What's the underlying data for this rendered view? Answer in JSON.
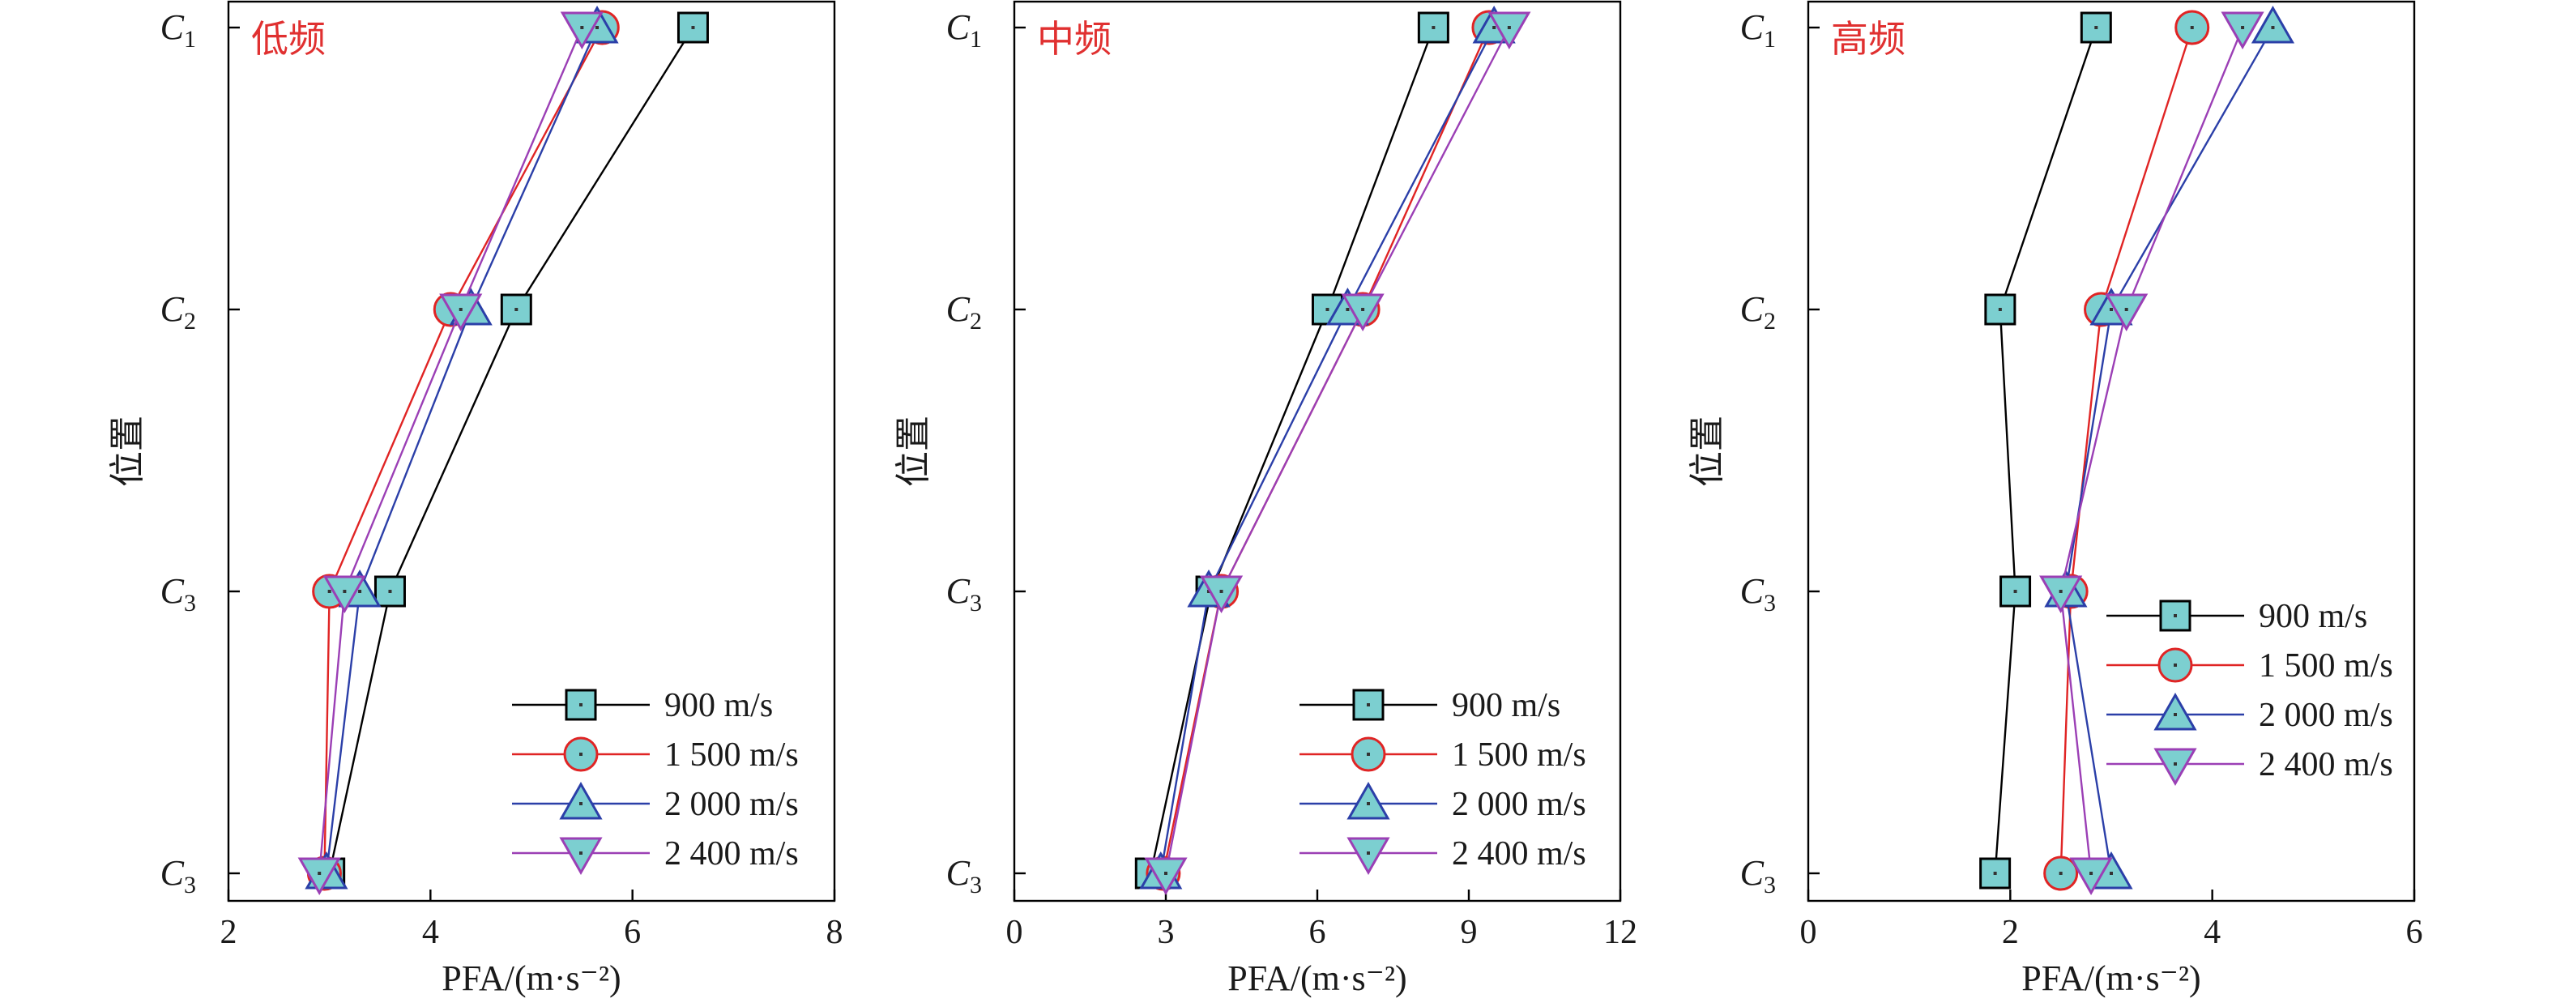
{
  "chart_data": [
    {
      "type": "line",
      "panel_title": "低频",
      "xlabel": "PFA/(m·s⁻²)",
      "ylabel": "位置",
      "xlim": [
        2,
        8
      ],
      "xticks": [
        2,
        4,
        6,
        8
      ],
      "categories": [
        "C1",
        "C2",
        "C3",
        "C3"
      ],
      "legend_position": "bottom-right",
      "series": [
        {
          "name": "900 m/s",
          "marker": "square",
          "color": "#000000",
          "values": [
            6.6,
            4.85,
            3.6,
            3.0
          ]
        },
        {
          "name": "1 500 m/s",
          "marker": "circle",
          "color": "#e02424",
          "values": [
            5.7,
            4.2,
            3.0,
            2.95
          ]
        },
        {
          "name": "2 000 m/s",
          "marker": "triangle-up",
          "color": "#2b3fa8",
          "values": [
            5.65,
            4.4,
            3.3,
            2.97
          ]
        },
        {
          "name": "2 400 m/s",
          "marker": "triangle-down",
          "color": "#9b3fb5",
          "values": [
            5.5,
            4.3,
            3.15,
            2.9
          ]
        }
      ]
    },
    {
      "type": "line",
      "panel_title": "中频",
      "xlabel": "PFA/(m·s⁻²)",
      "ylabel": "位置",
      "xlim": [
        0,
        12
      ],
      "xticks": [
        0,
        3,
        6,
        9,
        12
      ],
      "categories": [
        "C1",
        "C2",
        "C3",
        "C3"
      ],
      "legend_position": "bottom-right",
      "series": [
        {
          "name": "900 m/s",
          "marker": "square",
          "color": "#000000",
          "values": [
            8.3,
            6.2,
            3.9,
            2.7
          ]
        },
        {
          "name": "1 500 m/s",
          "marker": "circle",
          "color": "#e02424",
          "values": [
            9.4,
            6.9,
            4.1,
            2.95
          ]
        },
        {
          "name": "2 000 m/s",
          "marker": "triangle-up",
          "color": "#2b3fa8",
          "values": [
            9.5,
            6.6,
            3.85,
            2.9
          ]
        },
        {
          "name": "2 400 m/s",
          "marker": "triangle-down",
          "color": "#9b3fb5",
          "values": [
            9.8,
            6.9,
            4.1,
            3.0
          ]
        }
      ]
    },
    {
      "type": "line",
      "panel_title": "高频",
      "xlabel": "PFA/(m·s⁻²)",
      "ylabel": "位置",
      "xlim": [
        0,
        6
      ],
      "xticks": [
        0,
        2,
        4,
        6
      ],
      "categories": [
        "C1",
        "C2",
        "C3",
        "C3"
      ],
      "legend_position": "center-right",
      "series": [
        {
          "name": "900 m/s",
          "marker": "square",
          "color": "#000000",
          "values": [
            2.85,
            1.9,
            2.05,
            1.85
          ]
        },
        {
          "name": "1 500 m/s",
          "marker": "circle",
          "color": "#e02424",
          "values": [
            3.8,
            2.9,
            2.6,
            2.5
          ]
        },
        {
          "name": "2 000 m/s",
          "marker": "triangle-up",
          "color": "#2b3fa8",
          "values": [
            4.6,
            3.0,
            2.55,
            3.0
          ]
        },
        {
          "name": "2 400 m/s",
          "marker": "triangle-down",
          "color": "#9b3fb5",
          "values": [
            4.3,
            3.15,
            2.5,
            2.8
          ]
        }
      ]
    }
  ],
  "style": {
    "marker_fill": "#7ccfd0",
    "title_color": "#e03030"
  }
}
